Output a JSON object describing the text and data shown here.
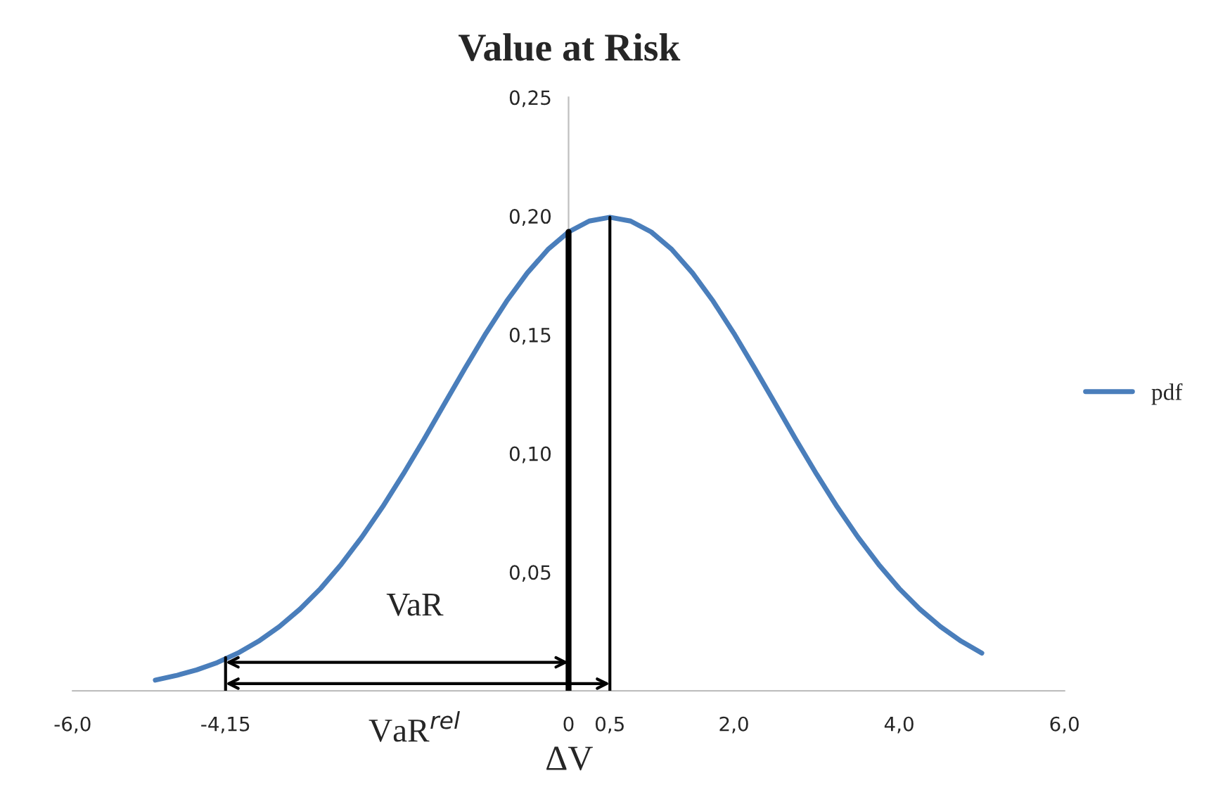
{
  "chart_data": {
    "type": "line",
    "title": "Value at Risk",
    "xlabel": "ΔV",
    "x": [
      -5,
      -4.75,
      -4.5,
      -4.25,
      -4,
      -3.75,
      -3.5,
      -3.25,
      -3,
      -2.75,
      -2.5,
      -2.25,
      -2,
      -1.75,
      -1.5,
      -1.25,
      -1,
      -0.75,
      -0.5,
      -0.25,
      0,
      0.25,
      0.5,
      0.75,
      1,
      1.25,
      1.5,
      1.75,
      2,
      2.25,
      2.5,
      2.75,
      3,
      3.25,
      3.5,
      3.75,
      4,
      4.25,
      4.5,
      4.75,
      5
    ],
    "series": [
      {
        "name": "pdf",
        "color": "#4a7ebb",
        "values": [
          0.0045,
          0.0064,
          0.0088,
          0.0119,
          0.0159,
          0.0209,
          0.027,
          0.0344,
          0.0431,
          0.0533,
          0.0648,
          0.0775,
          0.0913,
          0.1059,
          0.121,
          0.136,
          0.1506,
          0.1641,
          0.176,
          0.1859,
          0.1933,
          0.1979,
          0.1995,
          0.1979,
          0.1933,
          0.1859,
          0.176,
          0.1641,
          0.1506,
          0.136,
          0.121,
          0.1059,
          0.0913,
          0.0775,
          0.0648,
          0.0533,
          0.0431,
          0.0344,
          0.027,
          0.0209,
          0.0159
        ]
      },
      {
        "color": "#000000",
        "x": [
          -4.15,
          -4.15
        ],
        "values": [
          0,
          0.014
        ]
      },
      {
        "color": "#000000",
        "x": [
          0,
          0
        ],
        "values": [
          0,
          0.1933
        ]
      },
      {
        "color": "#000000",
        "x": [
          0.5,
          0.5
        ],
        "values": [
          0,
          0.1995
        ]
      }
    ],
    "xlim": [
      -6,
      6
    ],
    "ylim": [
      0,
      0.25
    ],
    "xticks": [
      {
        "value": -6,
        "label": "-6,0"
      },
      {
        "value": -4.15,
        "label": "-4,15"
      },
      {
        "value": 0,
        "label": "0"
      },
      {
        "value": 0.5,
        "label": "0,5"
      },
      {
        "value": 2,
        "label": "2,0"
      },
      {
        "value": 4,
        "label": "4,0"
      },
      {
        "value": 6,
        "label": "6,0"
      }
    ],
    "yticks": [
      {
        "value": 0,
        "label": null
      },
      {
        "value": 0.05,
        "label": "0,05"
      },
      {
        "value": 0.1,
        "label": "0,10"
      },
      {
        "value": 0.15,
        "label": "0,15"
      },
      {
        "value": 0.2,
        "label": "0,20"
      },
      {
        "value": 0.25,
        "label": "0,25"
      }
    ],
    "annotations": [
      "VaR",
      "VaR$^{rel}$"
    ],
    "legend": "right",
    "grid": false,
    "marker": "none",
    "line_style": "solid"
  }
}
